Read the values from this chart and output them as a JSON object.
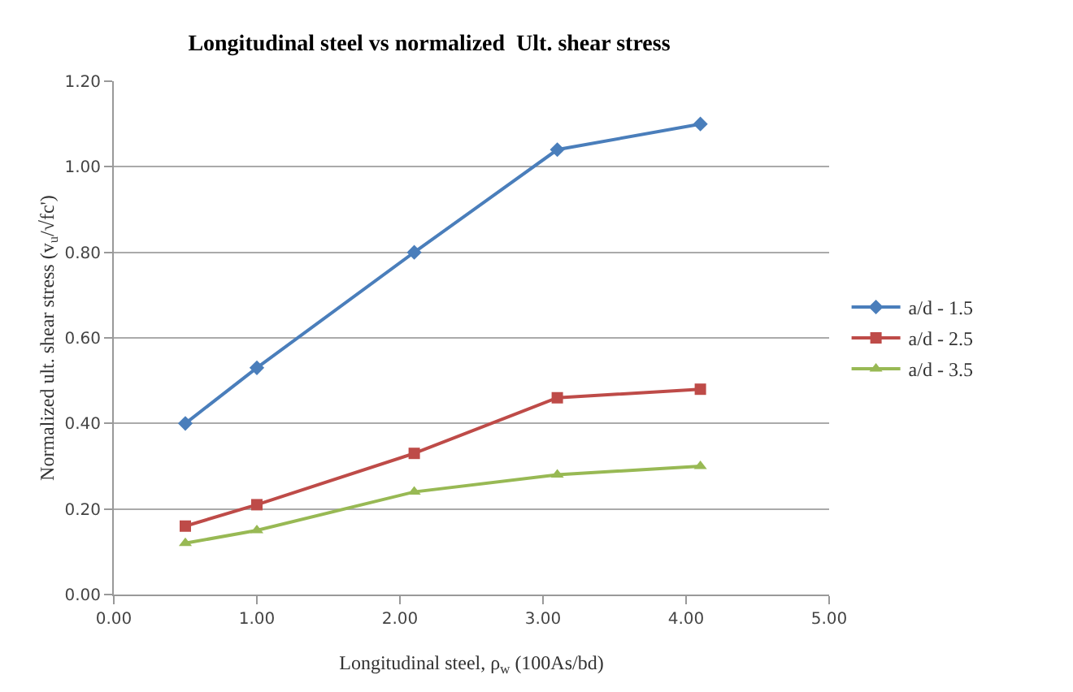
{
  "chart_data": {
    "type": "line",
    "title": "Longitudinal steel vs normalized  Ult. shear stress",
    "xlabel": "Longitudinal steel, ρ$_{w}$ (100As/bd)",
    "ylabel": "Normalized ult. shear stress (v$_{u}$/√fc')",
    "x": [
      0.5,
      1.0,
      2.1,
      3.1,
      4.1
    ],
    "series": [
      {
        "name": "a/d - 1.5",
        "color": "#4a7ebb",
        "marker": "diamond",
        "values": [
          0.4,
          0.53,
          0.8,
          1.04,
          1.1
        ]
      },
      {
        "name": "a/d - 2.5",
        "color": "#be4b48",
        "marker": "square",
        "values": [
          0.16,
          0.21,
          0.33,
          0.46,
          0.48
        ]
      },
      {
        "name": "a/d - 3.5",
        "color": "#98b954",
        "marker": "triangle",
        "values": [
          0.12,
          0.15,
          0.24,
          0.28,
          0.3
        ]
      }
    ],
    "xlim": [
      0,
      5
    ],
    "xticks": [
      {
        "value": 0,
        "label": "0.00"
      },
      {
        "value": 1,
        "label": "1.00"
      },
      {
        "value": 2,
        "label": "2.00"
      },
      {
        "value": 3,
        "label": "3.00"
      },
      {
        "value": 4,
        "label": "4.00"
      },
      {
        "value": 5,
        "label": "5.00"
      }
    ],
    "ylim": [
      0,
      1.2
    ],
    "yticks": [
      {
        "value": 0,
        "label": "0.00"
      },
      {
        "value": 0.2,
        "label": "0.20"
      },
      {
        "value": 0.4,
        "label": "0.40"
      },
      {
        "value": 0.6,
        "label": "0.60"
      },
      {
        "value": 0.8,
        "label": "0.80"
      },
      {
        "value": 1.0,
        "label": "1.00"
      },
      {
        "value": 1.2,
        "label": "1.20"
      }
    ],
    "grid": "y",
    "legend": "right",
    "line_style": "solid"
  }
}
